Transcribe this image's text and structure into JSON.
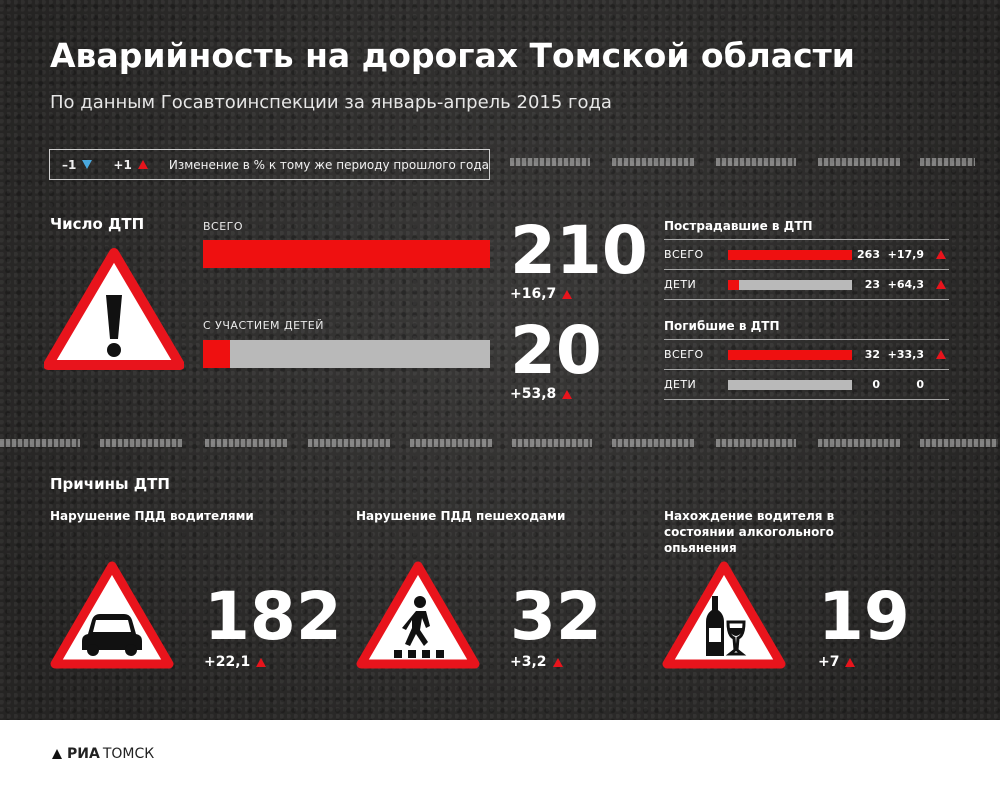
{
  "header": {
    "title": "Аварийность на дорогах Томской области",
    "subtitle": "По данным Госавтоинспекции за январь-апрель 2015 года"
  },
  "legend": {
    "down_label": "–1",
    "up_label": "+1",
    "text": "Изменение в % к тому же периоду прошлого года",
    "down_color": "#4aa9df",
    "up_color": "#e8141c"
  },
  "accidents": {
    "title": "Число ДТП",
    "icon": "warning-exclamation-icon",
    "total": {
      "label": "ВСЕГО",
      "value": "210",
      "change": "+16,7",
      "fill_fraction": 1.0
    },
    "children": {
      "label": "С УЧАСТИЕМ ДЕТЕЙ",
      "value": "20",
      "change": "+53,8",
      "fill_fraction": 0.095
    }
  },
  "injured": {
    "title": "Пострадавшие в ДТП",
    "rows": [
      {
        "label": "ВСЕГО",
        "value": "263",
        "change": "+17,9",
        "fill_fraction": 1.0,
        "trend": "up"
      },
      {
        "label": "ДЕТИ",
        "value": "23",
        "change": "+64,3",
        "fill_fraction": 0.087,
        "trend": "up"
      }
    ]
  },
  "killed": {
    "title": "Погибшие в ДТП",
    "rows": [
      {
        "label": "ВСЕГО",
        "value": "32",
        "change": "+33,3",
        "fill_fraction": 1.0,
        "trend": "up"
      },
      {
        "label": "ДЕТИ",
        "value": "0",
        "change": "0",
        "fill_fraction": 0.0,
        "trend": "none"
      }
    ]
  },
  "causes": {
    "title": "Причины ДТП",
    "items": [
      {
        "title": "Нарушение ПДД водителями",
        "value": "182",
        "change": "+22,1",
        "icon": "car-icon"
      },
      {
        "title": "Нарушение ПДД пешеходами",
        "value": "32",
        "change": "+3,2",
        "icon": "pedestrian-icon"
      },
      {
        "title": "Нахождение водителя в состоянии алкогольного опьянения",
        "value": "19",
        "change": "+7",
        "icon": "wine-bottle-glass-icon"
      }
    ]
  },
  "footer": {
    "logo_ria": "РИА",
    "logo_tomsk": "ТОМСК"
  },
  "colors": {
    "accent_red": "#ef1010",
    "bar_gray": "#b9b9b9"
  }
}
